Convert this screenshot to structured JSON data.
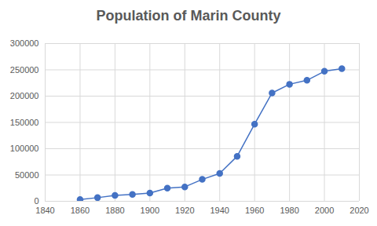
{
  "chart_data": {
    "type": "line",
    "title": "Population of Marin County",
    "x": [
      1860,
      1870,
      1880,
      1890,
      1900,
      1910,
      1920,
      1930,
      1940,
      1950,
      1960,
      1970,
      1980,
      1990,
      2000,
      2010
    ],
    "values": [
      3334,
      6903,
      11324,
      13072,
      15702,
      25114,
      27342,
      41648,
      52907,
      85619,
      146820,
      206038,
      222568,
      230096,
      247289,
      252409
    ],
    "color": "#4472c4",
    "marker": "circle",
    "xlim": [
      1840,
      2020
    ],
    "xticks": [
      1840,
      1860,
      1880,
      1900,
      1920,
      1940,
      1960,
      1980,
      2000,
      2020
    ],
    "ylim": [
      0,
      300000
    ],
    "yticks": [
      0,
      50000,
      100000,
      150000,
      200000,
      250000,
      300000
    ],
    "grid": true
  }
}
